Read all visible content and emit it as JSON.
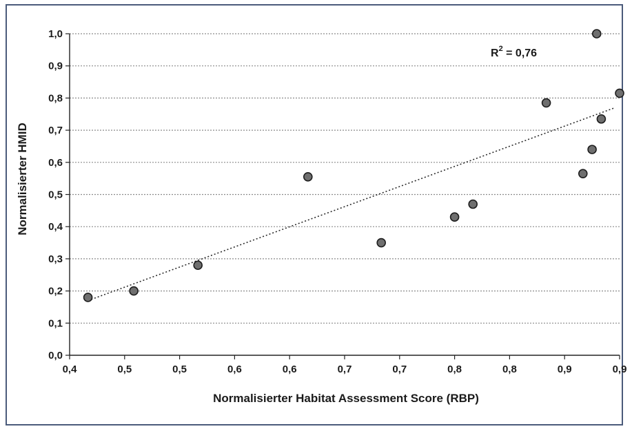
{
  "chart_data": {
    "type": "scatter",
    "title": "",
    "xlabel": "Normalisierter Habitat Assessment Score (RBP)",
    "ylabel": "Normalisierter HMID",
    "xlim": [
      0.4,
      1.0
    ],
    "ylim": [
      0.0,
      1.0
    ],
    "x_tick_labels": [
      "0,4",
      "0,5",
      "0,5",
      "0,6",
      "0,6",
      "0,7",
      "0,7",
      "0,8",
      "0,8",
      "0,9",
      "0,9"
    ],
    "y_tick_labels": [
      "0,0",
      "0,1",
      "0,2",
      "0,3",
      "0,4",
      "0,5",
      "0,6",
      "0,7",
      "0,8",
      "0,9",
      "1,0"
    ],
    "grid": "horizontal dotted",
    "points": [
      {
        "x": 0.42,
        "y": 0.18
      },
      {
        "x": 0.47,
        "y": 0.2
      },
      {
        "x": 0.54,
        "y": 0.28
      },
      {
        "x": 0.66,
        "y": 0.555
      },
      {
        "x": 0.74,
        "y": 0.35
      },
      {
        "x": 0.82,
        "y": 0.43
      },
      {
        "x": 0.84,
        "y": 0.47
      },
      {
        "x": 0.92,
        "y": 0.785
      },
      {
        "x": 0.96,
        "y": 0.565
      },
      {
        "x": 0.97,
        "y": 0.64
      },
      {
        "x": 0.98,
        "y": 0.735
      },
      {
        "x": 0.975,
        "y": 1.0
      },
      {
        "x": 1.0,
        "y": 0.815
      }
    ],
    "trendline": {
      "x": [
        0.42,
        0.995
      ],
      "y": [
        0.17,
        0.77
      ],
      "style": "dotted"
    },
    "annotation": {
      "r2_base": "R",
      "r2_exp": "2",
      "r2_value": " = 0,76"
    },
    "colors": {
      "marker_fill": "#6f6f6f",
      "marker_stroke": "#1e1e1e",
      "grid": "#8a8a8a",
      "frame": "#4a5a7a"
    }
  }
}
